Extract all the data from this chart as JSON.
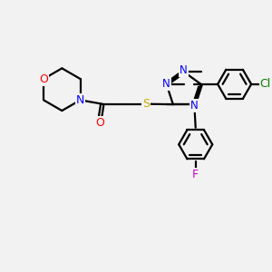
{
  "background_color": "#f2f2f2",
  "atom_colors": {
    "C": "#000000",
    "N": "#0000ff",
    "O": "#ff0000",
    "S": "#ccaa00",
    "Cl": "#008000",
    "F": "#cc00cc"
  },
  "bond_color": "#000000",
  "bond_width": 1.6
}
